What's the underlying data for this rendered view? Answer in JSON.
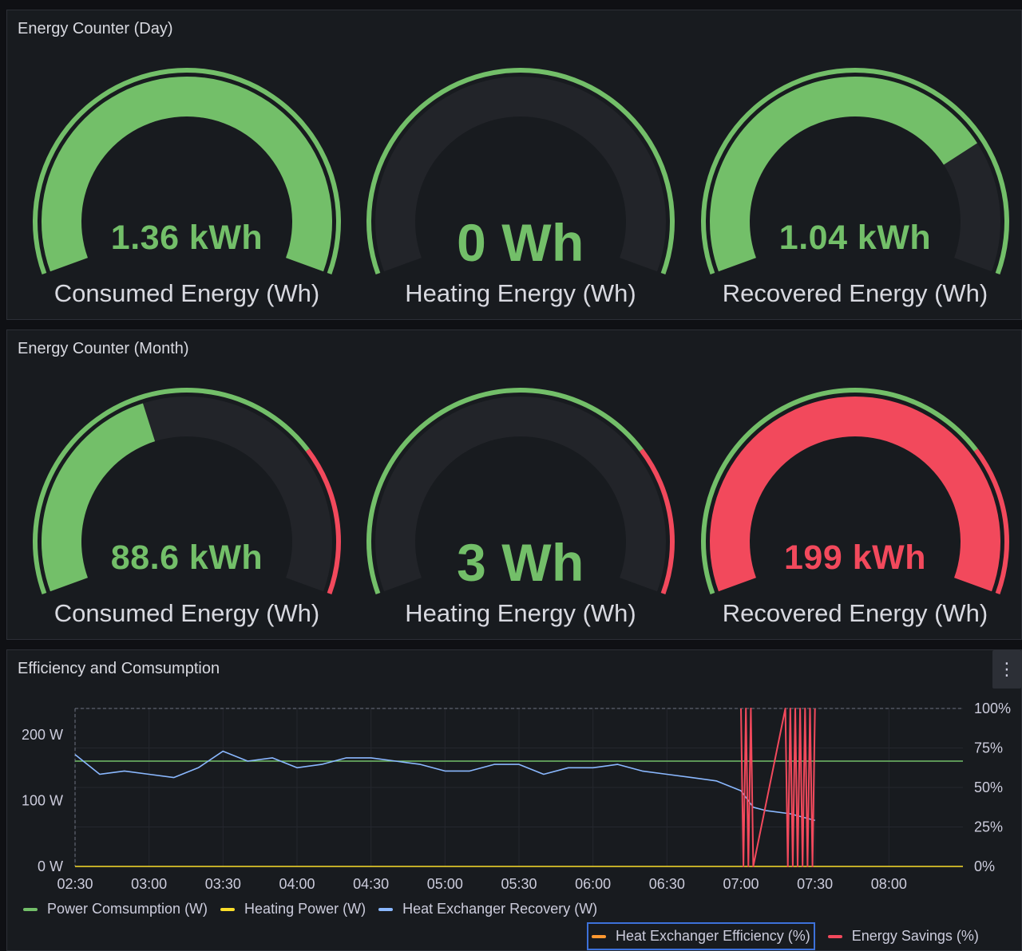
{
  "panels": [
    {
      "title": "Energy Counter (Day)",
      "gauges": [
        {
          "value": "1.36 kWh",
          "label": "Consumed Energy (Wh)",
          "fill_fraction": 1.0,
          "value_color": "#73bf69",
          "fill_color": "#73bf69",
          "thresholds": "green",
          "large": false
        },
        {
          "value": "0 Wh",
          "label": "Heating Energy (Wh)",
          "fill_fraction": 0.0,
          "value_color": "#73bf69",
          "fill_color": "#73bf69",
          "thresholds": "green",
          "large": true
        },
        {
          "value": "1.04 kWh",
          "label": "Recovered Energy (Wh)",
          "fill_fraction": 0.76,
          "value_color": "#73bf69",
          "fill_color": "#73bf69",
          "thresholds": "green",
          "large": false
        }
      ]
    },
    {
      "title": "Energy Counter (Month)",
      "gauges": [
        {
          "value": "88.6 kWh",
          "label": "Consumed Energy (Wh)",
          "fill_fraction": 0.42,
          "value_color": "#73bf69",
          "fill_color": "#73bf69",
          "thresholds": "green-red",
          "large": false
        },
        {
          "value": "3 Wh",
          "label": "Heating Energy (Wh)",
          "fill_fraction": 0.0,
          "value_color": "#73bf69",
          "fill_color": "#73bf69",
          "thresholds": "green-red",
          "large": true
        },
        {
          "value": "199 kWh",
          "label": "Recovered Energy (Wh)",
          "fill_fraction": 1.0,
          "value_color": "#f2495c",
          "fill_color": "#f2495c",
          "thresholds": "green-red",
          "large": false
        }
      ]
    }
  ],
  "timeseries": {
    "title": "Efficiency and Comsumption",
    "menu_icon": "kebab-menu-icon",
    "menu_glyph": "⋮",
    "left_ticks": [
      "200 W",
      "100 W",
      "0 W"
    ],
    "right_ticks": [
      "100%",
      "75%",
      "50%",
      "25%",
      "0%"
    ],
    "x_ticks": [
      "02:30",
      "03:00",
      "03:30",
      "04:00",
      "04:30",
      "05:00",
      "05:30",
      "06:00",
      "06:30",
      "07:00",
      "07:30",
      "08:00"
    ],
    "legend_row1": [
      {
        "label": "Power Comsumption (W)",
        "color": "#73bf69"
      },
      {
        "label": "Heating Power (W)",
        "color": "#fade2a"
      },
      {
        "label": "Heat Exchanger Recovery (W)",
        "color": "#8ab8ff"
      }
    ],
    "legend_row2": [
      {
        "label": "Heat Exchanger Efficiency (%)",
        "color": "#ff9830",
        "selected": true
      },
      {
        "label": "Energy Savings (%)",
        "color": "#f2495c",
        "selected": false
      }
    ]
  },
  "chart_data": {
    "type": "line",
    "x_range": [
      "02:30",
      "08:30"
    ],
    "ylim_left": [
      0,
      240
    ],
    "ylim_right": [
      0,
      100
    ],
    "series": [
      {
        "name": "Power Comsumption (W)",
        "axis": "left",
        "x": [
          "02:30",
          "08:30"
        ],
        "values": [
          160,
          160
        ]
      },
      {
        "name": "Heating Power (W)",
        "axis": "left",
        "x": [
          "02:30",
          "08:30"
        ],
        "values": [
          0,
          0
        ]
      },
      {
        "name": "Heat Exchanger Recovery (W)",
        "axis": "left",
        "x": [
          "02:30",
          "02:40",
          "02:50",
          "03:00",
          "03:10",
          "03:20",
          "03:30",
          "03:40",
          "03:50",
          "04:00",
          "04:10",
          "04:20",
          "04:30",
          "04:40",
          "04:50",
          "05:00",
          "05:10",
          "05:20",
          "05:30",
          "05:40",
          "05:50",
          "06:00",
          "06:10",
          "06:20",
          "06:30",
          "06:40",
          "06:50",
          "07:00",
          "07:05",
          "07:10",
          "07:20",
          "07:30"
        ],
        "values": [
          170,
          140,
          145,
          140,
          135,
          150,
          175,
          160,
          165,
          150,
          155,
          165,
          165,
          160,
          155,
          145,
          145,
          155,
          155,
          140,
          150,
          150,
          155,
          145,
          140,
          135,
          130,
          115,
          90,
          85,
          80,
          70
        ]
      },
      {
        "name": "Energy Savings (%)",
        "axis": "right",
        "x": [
          "07:00",
          "07:01",
          "07:02",
          "07:03",
          "07:04",
          "07:05",
          "07:18",
          "07:19",
          "07:20",
          "07:21",
          "07:22",
          "07:23",
          "07:24",
          "07:25",
          "07:26",
          "07:27",
          "07:28",
          "07:29",
          "07:30"
        ],
        "values": [
          100,
          0,
          100,
          0,
          100,
          0,
          100,
          0,
          100,
          0,
          100,
          0,
          100,
          0,
          100,
          0,
          100,
          0,
          100
        ]
      }
    ]
  }
}
